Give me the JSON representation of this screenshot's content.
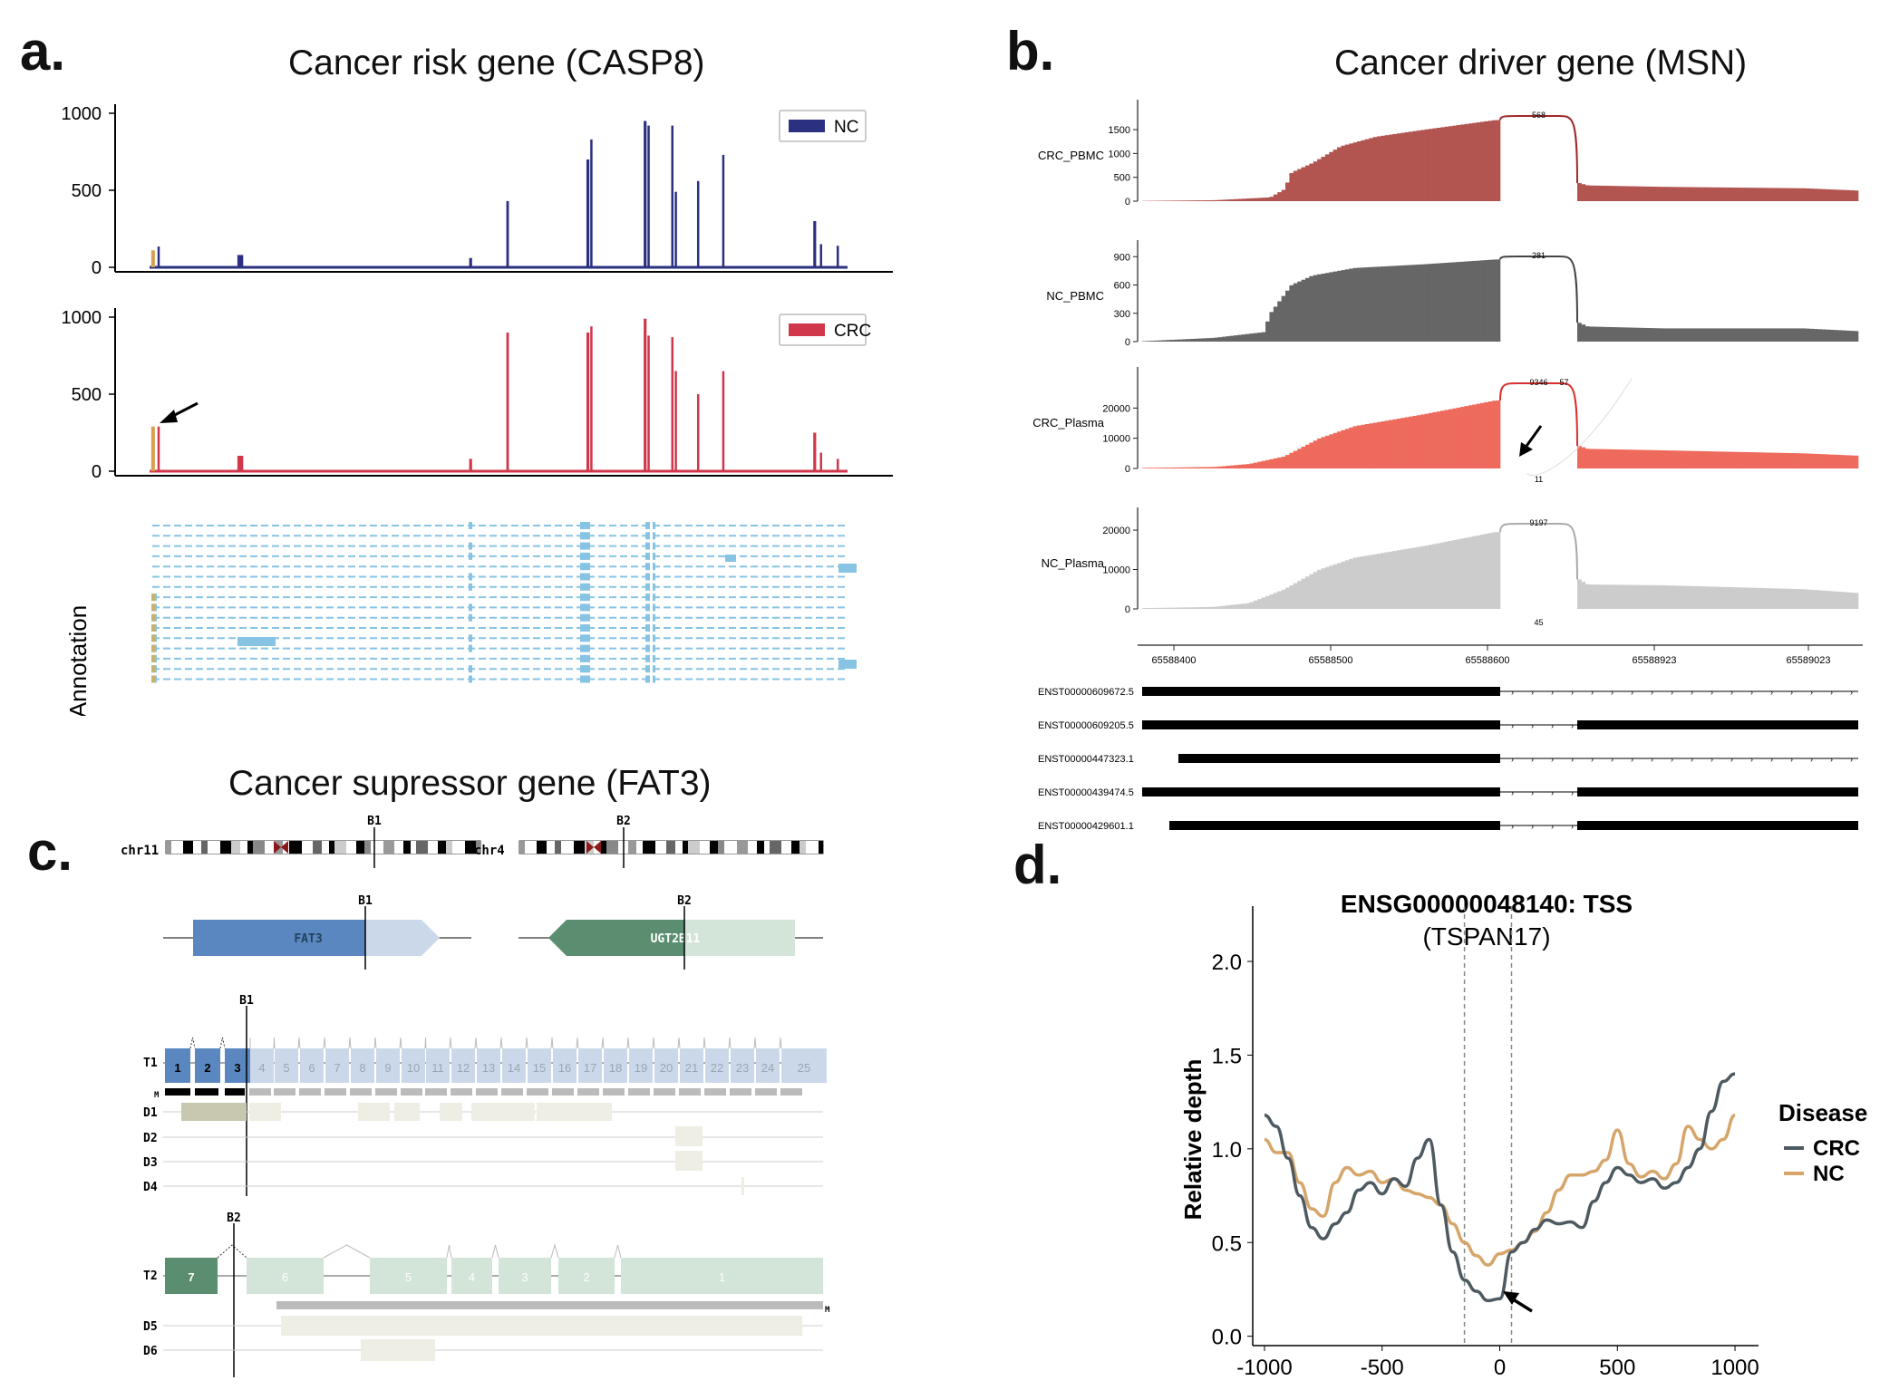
{
  "panels": {
    "a": {
      "letter": "a.",
      "title": "Cancer risk gene (CASP8)"
    },
    "b": {
      "letter": "b.",
      "title": "Cancer driver gene (MSN)"
    },
    "c": {
      "letter": "c.",
      "title": "Cancer supressor gene (FAT3)"
    },
    "d": {
      "letter": "d.",
      "title": "ENSG00000048140: TSS",
      "subtitle": "(TSPAN17)"
    }
  },
  "chart_data": [
    {
      "id": "a-nc",
      "type": "area",
      "legend": "NC",
      "color": "#2b3080",
      "ylim": [
        0,
        1000
      ],
      "yticks": [
        0,
        500,
        1000
      ],
      "x_range": [
        0,
        100
      ],
      "peaks": [
        {
          "x": 0.5,
          "h": 110,
          "w": 0.5,
          "color": "#d5a050"
        },
        {
          "x": 1.3,
          "h": 135,
          "w": 0.3
        },
        {
          "x": 13.0,
          "h": 80,
          "w": 0.8
        },
        {
          "x": 46.0,
          "h": 60,
          "w": 0.4
        },
        {
          "x": 51.3,
          "h": 430,
          "w": 0.35
        },
        {
          "x": 62.8,
          "h": 700,
          "w": 0.4
        },
        {
          "x": 63.3,
          "h": 830,
          "w": 0.3
        },
        {
          "x": 71.0,
          "h": 950,
          "w": 0.4
        },
        {
          "x": 71.5,
          "h": 920,
          "w": 0.3
        },
        {
          "x": 74.9,
          "h": 920,
          "w": 0.3
        },
        {
          "x": 75.4,
          "h": 490,
          "w": 0.3
        },
        {
          "x": 78.6,
          "h": 560,
          "w": 0.3
        },
        {
          "x": 82.2,
          "h": 730,
          "w": 0.3
        },
        {
          "x": 95.3,
          "h": 300,
          "w": 0.4
        },
        {
          "x": 96.2,
          "h": 150,
          "w": 0.3
        },
        {
          "x": 98.6,
          "h": 140,
          "w": 0.3
        }
      ]
    },
    {
      "id": "a-crc",
      "type": "area",
      "legend": "CRC",
      "color": "#d0374a",
      "ylim": [
        0,
        1000
      ],
      "yticks": [
        0,
        500,
        1000
      ],
      "x_range": [
        0,
        100
      ],
      "peaks": [
        {
          "x": 0.5,
          "h": 290,
          "w": 0.5,
          "color": "#d5a050"
        },
        {
          "x": 1.3,
          "h": 290,
          "w": 0.3
        },
        {
          "x": 13.0,
          "h": 100,
          "w": 0.8
        },
        {
          "x": 46.0,
          "h": 80,
          "w": 0.4
        },
        {
          "x": 51.3,
          "h": 900,
          "w": 0.35
        },
        {
          "x": 62.8,
          "h": 900,
          "w": 0.4
        },
        {
          "x": 63.3,
          "h": 940,
          "w": 0.3
        },
        {
          "x": 71.0,
          "h": 990,
          "w": 0.4
        },
        {
          "x": 71.5,
          "h": 880,
          "w": 0.3
        },
        {
          "x": 74.9,
          "h": 870,
          "w": 0.3
        },
        {
          "x": 75.4,
          "h": 650,
          "w": 0.3
        },
        {
          "x": 78.6,
          "h": 500,
          "w": 0.3
        },
        {
          "x": 82.2,
          "h": 650,
          "w": 0.3
        },
        {
          "x": 95.3,
          "h": 250,
          "w": 0.4
        },
        {
          "x": 96.2,
          "h": 120,
          "w": 0.3
        },
        {
          "x": 98.6,
          "h": 80,
          "w": 0.3
        }
      ]
    },
    {
      "id": "b-crc-pbmc",
      "type": "bar",
      "label": "CRC_PBMC",
      "color": "#b25450",
      "ylim": [
        0,
        1900
      ],
      "yticks": [
        0,
        500,
        1000,
        1500
      ],
      "junction_labels": [
        "568"
      ],
      "profile": [
        [
          0,
          5
        ],
        [
          10,
          20
        ],
        [
          18,
          80
        ],
        [
          20,
          250
        ],
        [
          21,
          600
        ],
        [
          24,
          800
        ],
        [
          28,
          1150
        ],
        [
          33,
          1350
        ],
        [
          40,
          1500
        ],
        [
          50,
          1700
        ],
        [
          51,
          1700
        ]
      ],
      "tail": [
        [
          0,
          380
        ],
        [
          3,
          330
        ],
        [
          30,
          300
        ],
        [
          80,
          270
        ],
        [
          100,
          220
        ]
      ]
    },
    {
      "id": "b-nc-pbmc",
      "type": "bar",
      "label": "NC_PBMC",
      "color": "#666666",
      "ylim": [
        0,
        960
      ],
      "yticks": [
        0,
        300,
        600,
        900
      ],
      "junction_labels": [
        "281"
      ],
      "profile": [
        [
          0,
          5
        ],
        [
          10,
          40
        ],
        [
          17,
          100
        ],
        [
          18,
          300
        ],
        [
          21,
          600
        ],
        [
          24,
          700
        ],
        [
          30,
          780
        ],
        [
          40,
          820
        ],
        [
          50,
          870
        ],
        [
          51,
          870
        ]
      ],
      "tail": [
        [
          0,
          200
        ],
        [
          3,
          160
        ],
        [
          30,
          140
        ],
        [
          80,
          140
        ],
        [
          100,
          110
        ]
      ]
    },
    {
      "id": "b-crc-plasma",
      "type": "bar",
      "label": "CRC_Plasma",
      "color": "#ee6a5c",
      "ylim": [
        0,
        30000
      ],
      "yticks": [
        0,
        10000,
        20000
      ],
      "junction_labels": [
        "9346",
        "57",
        "11"
      ],
      "profile": [
        [
          0,
          200
        ],
        [
          10,
          500
        ],
        [
          15,
          1500
        ],
        [
          20,
          4000
        ],
        [
          25,
          10000
        ],
        [
          30,
          14000
        ],
        [
          40,
          18000
        ],
        [
          50,
          22500
        ],
        [
          51,
          22500
        ]
      ],
      "tail": [
        [
          0,
          7500
        ],
        [
          3,
          6500
        ],
        [
          30,
          6000
        ],
        [
          80,
          5000
        ],
        [
          100,
          4200
        ]
      ]
    },
    {
      "id": "b-nc-plasma",
      "type": "bar",
      "label": "NC_Plasma",
      "color": "#cccccc",
      "ylim": [
        0,
        23000
      ],
      "yticks": [
        0,
        10000,
        20000
      ],
      "junction_labels": [
        "9197",
        "45"
      ],
      "profile": [
        [
          0,
          200
        ],
        [
          10,
          500
        ],
        [
          15,
          1500
        ],
        [
          20,
          5000
        ],
        [
          25,
          10000
        ],
        [
          30,
          13000
        ],
        [
          40,
          16000
        ],
        [
          50,
          19500
        ],
        [
          51,
          19500
        ]
      ],
      "tail": [
        [
          0,
          7500
        ],
        [
          3,
          6200
        ],
        [
          30,
          6000
        ],
        [
          80,
          5000
        ],
        [
          100,
          4000
        ]
      ]
    },
    {
      "id": "b-axis",
      "type": "table",
      "xticks": [
        "65588400",
        "65588500",
        "65588600",
        "65588923",
        "65589023"
      ],
      "transcripts": [
        "ENST00000609672.5",
        "ENST00000609205.5",
        "ENST00000447323.1",
        "ENST00000439474.5",
        "ENST00000429601.1"
      ]
    },
    {
      "id": "d",
      "type": "line",
      "xlabel": "",
      "ylabel": "Relative depth",
      "xlim": [
        -1050,
        1100
      ],
      "ylim": [
        -0.05,
        2.15
      ],
      "xticks": [
        -1000,
        -500,
        0,
        500,
        1000
      ],
      "yticks": [
        0.0,
        0.5,
        1.0,
        1.5,
        2.0
      ],
      "ytick_labels": [
        "0.0",
        "0.5",
        "1.0",
        "1.5",
        "2.0"
      ],
      "vlines": [
        -150,
        50
      ],
      "legend_title": "Disease",
      "series": [
        {
          "name": "CRC",
          "color": "#4d5a61",
          "x": [
            -1000,
            -950,
            -900,
            -850,
            -800,
            -750,
            -700,
            -650,
            -600,
            -550,
            -500,
            -450,
            -400,
            -350,
            -300,
            -250,
            -200,
            -150,
            -100,
            -50,
            0,
            50,
            100,
            150,
            200,
            250,
            300,
            350,
            400,
            450,
            500,
            550,
            600,
            650,
            700,
            750,
            800,
            850,
            900,
            950,
            1000
          ],
          "y": [
            1.18,
            1.12,
            0.95,
            0.75,
            0.58,
            0.52,
            0.6,
            0.66,
            0.78,
            0.82,
            0.76,
            0.84,
            0.8,
            0.95,
            1.05,
            0.7,
            0.45,
            0.3,
            0.24,
            0.19,
            0.2,
            0.45,
            0.5,
            0.57,
            0.62,
            0.6,
            0.61,
            0.58,
            0.72,
            0.82,
            0.9,
            0.86,
            0.82,
            0.84,
            0.79,
            0.82,
            0.9,
            1.0,
            1.2,
            1.36,
            1.4
          ]
        },
        {
          "name": "NC",
          "color": "#d5a56a",
          "x": [
            -1000,
            -950,
            -900,
            -850,
            -800,
            -750,
            -700,
            -650,
            -600,
            -550,
            -500,
            -450,
            -400,
            -350,
            -300,
            -250,
            -200,
            -150,
            -100,
            -50,
            0,
            50,
            100,
            150,
            200,
            250,
            300,
            350,
            400,
            450,
            500,
            550,
            600,
            650,
            700,
            750,
            800,
            850,
            900,
            950,
            1000
          ],
          "y": [
            1.05,
            0.98,
            0.98,
            0.82,
            0.68,
            0.64,
            0.82,
            0.9,
            0.86,
            0.88,
            0.82,
            0.84,
            0.78,
            0.76,
            0.74,
            0.7,
            0.6,
            0.5,
            0.43,
            0.38,
            0.44,
            0.46,
            0.5,
            0.56,
            0.66,
            0.78,
            0.86,
            0.86,
            0.88,
            0.94,
            1.1,
            0.92,
            0.85,
            0.88,
            0.84,
            0.92,
            1.12,
            1.05,
            1.0,
            1.05,
            1.18
          ]
        }
      ]
    }
  ],
  "panel_a": {
    "annotation_label": "Annotation"
  },
  "panel_c": {
    "chr1": "chr11",
    "chr2": "chr4",
    "b1": "B1",
    "b2": "B2",
    "gene1": "FAT3",
    "gene2": "UGT2B11",
    "t1": "T1",
    "t2": "T2",
    "m": "M",
    "d_labels": [
      "D1",
      "D2",
      "D3",
      "D4"
    ],
    "d2_labels": [
      "D5",
      "D6"
    ],
    "t1_exons": [
      "1",
      "2",
      "3",
      "4",
      "5",
      "6",
      "7",
      "8",
      "9",
      "10",
      "11",
      "12",
      "13",
      "14",
      "15",
      "16",
      "17",
      "18",
      "19",
      "20",
      "21",
      "22",
      "23",
      "24",
      "25"
    ],
    "t2_exons": [
      "7",
      "6",
      "5",
      "4",
      "3",
      "2",
      "1"
    ]
  }
}
